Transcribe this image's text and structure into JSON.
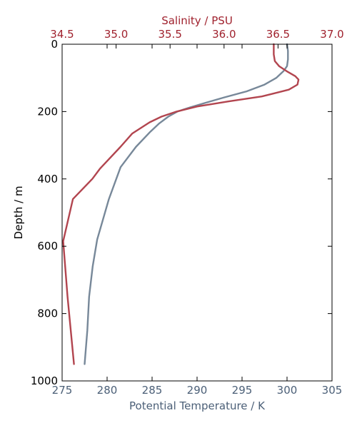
{
  "chart_data": {
    "type": "line",
    "title": "",
    "xlabel": "Potential Temperature / K",
    "x2label": "Salinity / PSU",
    "ylabel": "Depth / m",
    "xlim": [
      275,
      305
    ],
    "x2lim": [
      34.5,
      37.0
    ],
    "ylim": [
      1000,
      0
    ],
    "y_inverted": true,
    "grid": false,
    "legend": "none",
    "x_ticks": [
      "275",
      "280",
      "285",
      "290",
      "295",
      "300",
      "305"
    ],
    "x2_ticks": [
      "34.5",
      "35.0",
      "35.5",
      "36.0",
      "36.5",
      "37.0"
    ],
    "y_ticks": [
      "0",
      "200",
      "400",
      "600",
      "800",
      "1000"
    ],
    "colors": {
      "temperature": "#778899",
      "salinity": "#b2454f",
      "temperature_axis": "#4b5f77",
      "salinity_axis": "#a0222e"
    },
    "series": [
      {
        "axis": "bottom",
        "points": [
          [
            300.0,
            0
          ],
          [
            300.1,
            20
          ],
          [
            300.1,
            45
          ],
          [
            300.0,
            65
          ],
          [
            299.6,
            80
          ],
          [
            298.8,
            100
          ],
          [
            297.5,
            120
          ],
          [
            295.5,
            140
          ],
          [
            293.0,
            158
          ],
          [
            290.8,
            175
          ],
          [
            289.2,
            188
          ],
          [
            287.8,
            200
          ],
          [
            286.8,
            215
          ],
          [
            285.8,
            235
          ],
          [
            284.8,
            260
          ],
          [
            283.2,
            305
          ],
          [
            281.5,
            365
          ],
          [
            280.2,
            460
          ],
          [
            278.9,
            580
          ],
          [
            278.4,
            660
          ],
          [
            278.0,
            750
          ],
          [
            277.8,
            850
          ],
          [
            277.5,
            950
          ]
        ]
      },
      {
        "axis": "top",
        "points": [
          [
            36.46,
            0
          ],
          [
            36.46,
            30
          ],
          [
            36.47,
            50
          ],
          [
            36.51,
            65
          ],
          [
            36.58,
            80
          ],
          [
            36.66,
            95
          ],
          [
            36.69,
            105
          ],
          [
            36.68,
            120
          ],
          [
            36.6,
            135
          ],
          [
            36.35,
            155
          ],
          [
            36.04,
            170
          ],
          [
            35.75,
            185
          ],
          [
            35.56,
            200
          ],
          [
            35.42,
            215
          ],
          [
            35.31,
            232
          ],
          [
            35.15,
            265
          ],
          [
            35.04,
            305
          ],
          [
            34.85,
            370
          ],
          [
            34.78,
            400
          ],
          [
            34.6,
            460
          ],
          [
            34.51,
            585
          ],
          [
            34.55,
            750
          ],
          [
            34.61,
            950
          ]
        ]
      }
    ]
  }
}
